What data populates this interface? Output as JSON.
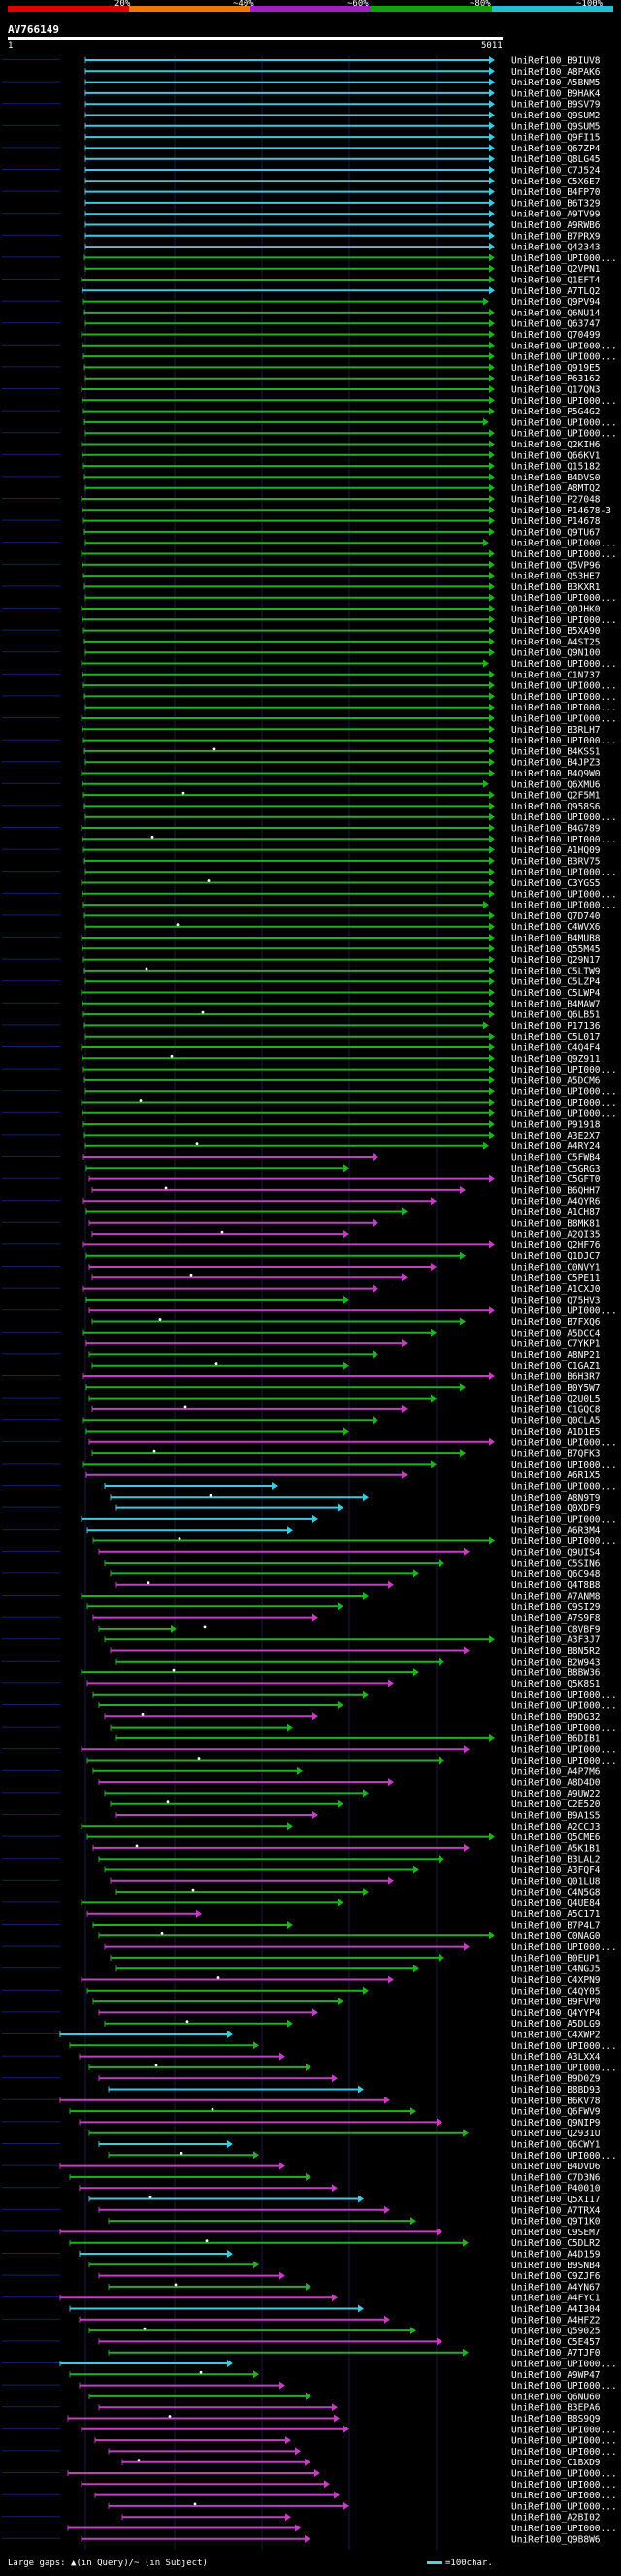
{
  "scale": {
    "labels": [
      "20%",
      "~40%",
      "~60%",
      "~80%",
      "~100%"
    ],
    "colors": [
      "#e00000",
      "#f07800",
      "#a020c0",
      "#10a010",
      "#20c0d0"
    ]
  },
  "query": {
    "title": "AV766149",
    "start": "1",
    "end": "5011"
  },
  "group_colors": {
    "cyan": "#40c8e0",
    "green": "#22b022",
    "magenta": "#c040c0"
  },
  "hits": [
    "UniRef100_B9IUV8",
    "UniRef100_A8PAK6",
    "UniRef100_A5BNM5",
    "UniRef100_B9HAK4",
    "UniRef100_B9SV79",
    "UniRef100_Q9SUM2",
    "UniRef100_Q9SUM5",
    "UniRef100_Q9FI15",
    "UniRef100_Q67ZP4",
    "UniRef100_Q8LG45",
    "UniRef100_C7J524",
    "UniRef100_C5X6E7",
    "UniRef100_B4FP70",
    "UniRef100_B6T329",
    "UniRef100_A9TV99",
    "UniRef100_A9RWB6",
    "UniRef100_B7PRX9",
    "UniRef100_Q42343",
    "UniRef100_UPI000...",
    "UniRef100_Q2VPN1",
    "UniRef100_Q1EFT4",
    "UniRef100_A7TLQ2",
    "UniRef100_Q9PV94",
    "UniRef100_Q6NU14",
    "UniRef100_Q63747",
    "UniRef100_Q70499",
    "UniRef100_UPI000...",
    "UniRef100_UPI000...",
    "UniRef100_Q919E5",
    "UniRef100_P63162",
    "UniRef100_Q17QN3",
    "UniRef100_UPI000...",
    "UniRef100_P5G4G2",
    "UniRef100_UPI000...",
    "UniRef100_UPI000...",
    "UniRef100_Q2KIH6",
    "UniRef100_Q66KV1",
    "UniRef100_Q15182",
    "UniRef100_B4DVS0",
    "UniRef100_A8MTQ2",
    "UniRef100_P27048",
    "UniRef100_P14678-3",
    "UniRef100_P14678",
    "UniRef100_Q9TU67",
    "UniRef100_UPI000...",
    "UniRef100_UPI000...",
    "UniRef100_Q5VP96",
    "UniRef100_Q53HE7",
    "UniRef100_B3KXR1",
    "UniRef100_UPI000...",
    "UniRef100_Q0JHK0",
    "UniRef100_UPI000...",
    "UniRef100_B5XA90",
    "UniRef100_A4ST25",
    "UniRef100_Q9N100",
    "UniRef100_UPI000...",
    "UniRef100_C1N737",
    "UniRef100_UPI000...",
    "UniRef100_UPI000...",
    "UniRef100_UPI000...",
    "UniRef100_UPI000...",
    "UniRef100_B3RLH7",
    "UniRef100_UPI000...",
    "UniRef100_B4KSS1",
    "UniRef100_B4JPZ3",
    "UniRef100_B4Q9W0",
    "UniRef100_Q6XMU6",
    "UniRef100_Q2F5M1",
    "UniRef100_Q958S6",
    "UniRef100_UPI000...",
    "UniRef100_B4G789",
    "UniRef100_UPI000...",
    "UniRef100_A1HQ09",
    "UniRef100_B3RV75",
    "UniRef100_UPI000...",
    "UniRef100_C3YGS5",
    "UniRef100_UPI000...",
    "UniRef100_UPI000...",
    "UniRef100_Q7D740",
    "UniRef100_C4WVX6",
    "UniRef100_B4MUB8",
    "UniRef100_Q55M45",
    "UniRef100_Q29N17",
    "UniRef100_C5LTW9",
    "UniRef100_C5LZP4",
    "UniRef100_C5LWP4",
    "UniRef100_B4MAW7",
    "UniRef100_Q6LB51",
    "UniRef100_P17136",
    "UniRef100_C5L017",
    "UniRef100_C4Q4F4",
    "UniRef100_Q9Z911",
    "UniRef100_UPI000...",
    "UniRef100_A5DCM6",
    "UniRef100_UPI000...",
    "UniRef100_UPI000...",
    "UniRef100_UPI000...",
    "UniRef100_P91918",
    "UniRef100_A3E2X7",
    "UniRef100_A4RY24",
    "UniRef100_C5FWB4",
    "UniRef100_C5GRG3",
    "UniRef100_C5GFT0",
    "UniRef100_B6QHH7",
    "UniRef100_A4QYR6",
    "UniRef100_A1CH87",
    "UniRef100_B8MK81",
    "UniRef100_A2QI35",
    "UniRef100_Q2HF76",
    "UniRef100_Q1DJC7",
    "UniRef100_C0NVY1",
    "UniRef100_C5PE11",
    "UniRef100_A1CXJ0",
    "UniRef100_Q75HV3",
    "UniRef100_UPI000...",
    "UniRef100_B7FXQ6",
    "UniRef100_A5DCC4",
    "UniRef100_C7YKP1",
    "UniRef100_A8NP21",
    "UniRef100_C1GAZ1",
    "UniRef100_B6H3R7",
    "UniRef100_B0Y5W7",
    "UniRef100_Q2U0L5",
    "UniRef100_C1GQC8",
    "UniRef100_Q0CLA5",
    "UniRef100_A1D1E5",
    "UniRef100_UPI000...",
    "UniRef100_B7QFK3",
    "UniRef100_UPI000...",
    "UniRef100_A6R1X5",
    "UniRef100_UPI000...",
    "UniRef100_A8N9T9",
    "UniRef100_Q0XDF9",
    "UniRef100_UPI000...",
    "UniRef100_A6R3M4",
    "UniRef100_UPI000...",
    "UniRef100_Q9UIS4",
    "UniRef100_C5SIN6",
    "UniRef100_Q6C948",
    "UniRef100_Q4T8B8",
    "UniRef100_A7ANM8",
    "UniRef100_C9SI29",
    "UniRef100_A7S9F8",
    "UniRef100_C8VBF9",
    "UniRef100_A3F3J7",
    "UniRef100_B8N5R2",
    "UniRef100_B2W943",
    "UniRef100_B8BW36",
    "UniRef100_Q5K8S1",
    "UniRef100_UPI000...",
    "UniRef100_UPI000...",
    "UniRef100_B9DG32",
    "UniRef100_UPI000...",
    "UniRef100_B6DIB1",
    "UniRef100_UPI000...",
    "UniRef100_UPI000...",
    "UniRef100_A4P7M6",
    "UniRef100_A8D4D0",
    "UniRef100_A9UW22",
    "UniRef100_C2E520",
    "UniRef100_B9A1S5",
    "UniRef100_A2CCJ3",
    "UniRef100_Q5CME6",
    "UniRef100_A5K1B1",
    "UniRef100_B3LAL2",
    "UniRef100_A3FQF4",
    "UniRef100_Q01LU8",
    "UniRef100_C4N5G8",
    "UniRef100_Q4UE84",
    "UniRef100_A5C171",
    "UniRef100_B7P4L7",
    "UniRef100_C0NAG0",
    "UniRef100_UPI000...",
    "UniRef100_B0EUP1",
    "UniRef100_C4NGJ5",
    "UniRef100_C4XPN9",
    "UniRef100_C4QY05",
    "UniRef100_B9FVP0",
    "UniRef100_Q4YYP4",
    "UniRef100_A5DLG9",
    "UniRef100_C4XWP2",
    "UniRef100_UPI000...",
    "UniRef100_A3LXX4",
    "UniRef100_UPI000...",
    "UniRef100_B9D0Z9",
    "UniRef100_B8BD93",
    "UniRef100_B6KV78",
    "UniRef100_Q6FWV9",
    "UniRef100_Q9NIP9",
    "UniRef100_Q2931U",
    "UniRef100_Q6CWY1",
    "UniRef100_UPI000...",
    "UniRef100_B4DVD6",
    "UniRef100_C7D3N6",
    "UniRef100_P40010",
    "UniRef100_Q5X117",
    "UniRef100_A7TRX4",
    "UniRef100_Q9T1K0",
    "UniRef100_C9SEM7",
    "UniRef100_C5DLR2",
    "UniRef100_A4D159",
    "UniRef100_B9SNB4",
    "UniRef100_C9ZJF6",
    "UniRef100_A4YN67",
    "UniRef100_A4FYC1",
    "UniRef100_A4I304",
    "UniRef100_A4HFZ2",
    "UniRef100_Q59025",
    "UniRef100_C5E457",
    "UniRef100_A7TJF0",
    "UniRef100_UPI000...",
    "UniRef100_A9WP47",
    "UniRef100_UPI000...",
    "UniRef100_Q6NU60",
    "UniRef100_B3EPA6",
    "UniRef100_B8S9Q9",
    "UniRef100_UPI000...",
    "UniRef100_UPI000...",
    "UniRef100_UPI000...",
    "UniRef100_C1BXD9",
    "UniRef100_UPI000...",
    "UniRef100_UPI000...",
    "UniRef100_UPI000...",
    "UniRef100_UPI000...",
    "UniRef100_A2BI02",
    "UniRef100_UPI000...",
    "UniRef100_Q9B8W6"
  ],
  "footer": {
    "gaps_label": "Large gaps: ▲(in Query)/~ (in Subject)"
  },
  "legend": {
    "label": "=100char."
  }
}
